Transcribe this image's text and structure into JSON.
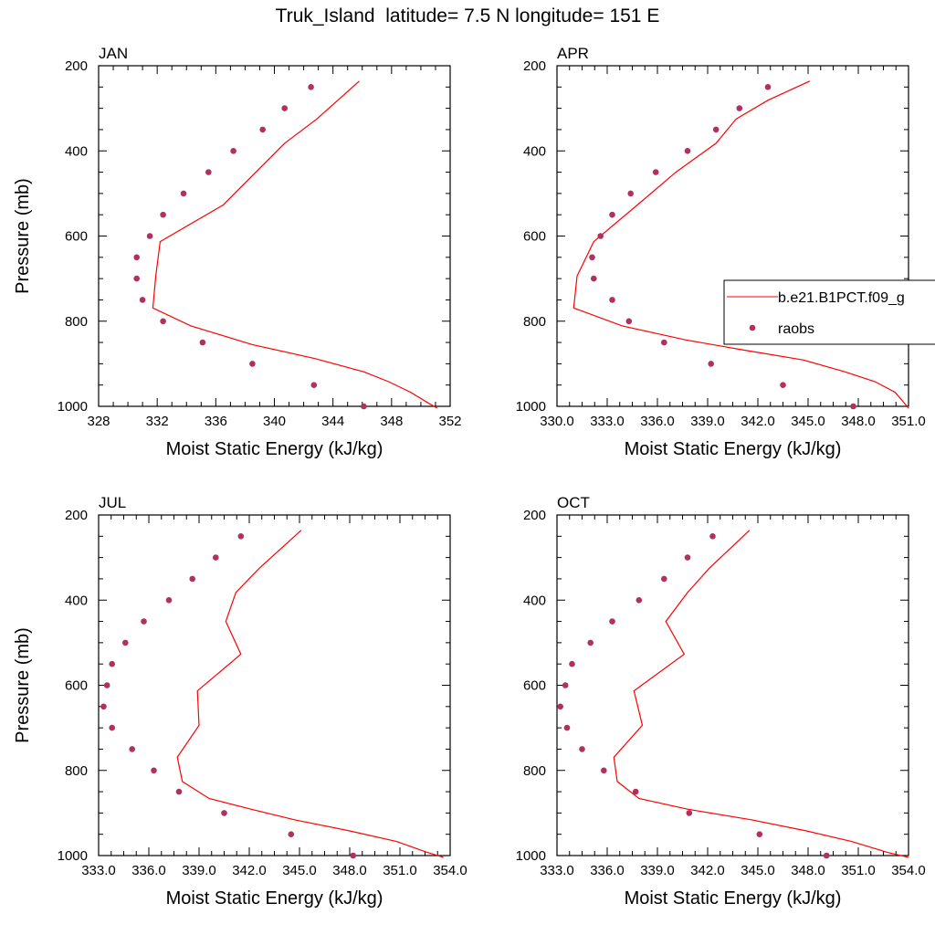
{
  "title": "Truk_Island  latitude= 7.5 N longitude= 151 E",
  "legend": {
    "entries": [
      {
        "label": "b.e21.B1PCT.f09_g",
        "style": "line",
        "color": "#ff0000"
      },
      {
        "label": "raobs",
        "style": "marker",
        "color": "#b03060"
      }
    ]
  },
  "chart_data": [
    {
      "type": "line",
      "title": "JAN",
      "xlabel": "Moist Static Energy (kJ/kg)",
      "ylabel": "Pressure (mb)",
      "xlim": [
        328,
        352
      ],
      "ylim": [
        1000,
        200
      ],
      "xticks": [
        "328",
        "332",
        "336",
        "340",
        "344",
        "348",
        "352"
      ],
      "xtick_values": [
        328,
        332,
        336,
        340,
        344,
        348,
        352
      ],
      "yticks": [
        "200",
        "400",
        "600",
        "800",
        "1000"
      ],
      "ytick_values": [
        200,
        400,
        600,
        800,
        1000
      ],
      "series": [
        {
          "name": "b.e21.B1PCT.f09_g",
          "style": "line",
          "x": [
            345.8,
            342.9,
            340.7,
            336.5,
            332.2,
            331.9,
            331.7,
            334.3,
            338.5,
            342.8,
            346.1,
            347.8,
            349.3,
            350.5,
            351.1
          ],
          "y": [
            236,
            325,
            382,
            527,
            613,
            694,
            769,
            811,
            855,
            888,
            919,
            942,
            967,
            992,
            1004
          ]
        },
        {
          "name": "raobs",
          "style": "marker",
          "x": [
            342.5,
            340.7,
            339.2,
            337.2,
            335.5,
            333.8,
            332.4,
            331.5,
            330.6,
            330.6,
            331.0,
            332.4,
            335.1,
            338.5,
            342.7,
            346.1
          ],
          "y": [
            250,
            300,
            350,
            400,
            450,
            500,
            550,
            600,
            650,
            700,
            750,
            800,
            850,
            900,
            950,
            1000
          ]
        }
      ]
    },
    {
      "type": "line",
      "title": "APR",
      "xlabel": "Moist Static Energy (kJ/kg)",
      "ylabel": "",
      "xlim": [
        330,
        351
      ],
      "ylim": [
        1000,
        200
      ],
      "xticks": [
        "330.0",
        "333.0",
        "336.0",
        "339.0",
        "342.0",
        "345.0",
        "348.0",
        "351.0"
      ],
      "xtick_values": [
        330,
        333,
        336,
        339,
        342,
        345,
        348,
        351
      ],
      "yticks": [
        "200",
        "400",
        "600",
        "800",
        "1000"
      ],
      "ytick_values": [
        200,
        400,
        600,
        800,
        1000
      ],
      "series": [
        {
          "name": "b.e21.B1PCT.f09_g",
          "style": "line",
          "x": [
            345.1,
            342.6,
            340.7,
            339.5,
            337.1,
            334.8,
            332.2,
            331.2,
            331.0,
            333.9,
            337.7,
            341.2,
            344.7,
            347.2,
            349.0,
            350.2,
            351.0
          ],
          "y": [
            236,
            281,
            325,
            382,
            450,
            527,
            613,
            694,
            769,
            811,
            844,
            868,
            891,
            919,
            942,
            967,
            1004
          ]
        },
        {
          "name": "raobs",
          "style": "marker",
          "x": [
            342.6,
            340.9,
            339.5,
            337.8,
            335.9,
            334.4,
            333.3,
            332.6,
            332.1,
            332.2,
            333.3,
            334.3,
            336.4,
            339.2,
            343.5,
            347.7
          ],
          "y": [
            250,
            300,
            350,
            400,
            450,
            500,
            550,
            600,
            650,
            700,
            750,
            800,
            850,
            900,
            950,
            1000
          ]
        }
      ]
    },
    {
      "type": "line",
      "title": "JUL",
      "xlabel": "Moist Static Energy (kJ/kg)",
      "ylabel": "Pressure (mb)",
      "xlim": [
        333,
        354
      ],
      "ylim": [
        1000,
        200
      ],
      "xticks": [
        "333.0",
        "336.0",
        "339.0",
        "342.0",
        "345.0",
        "348.0",
        "351.0",
        "354.0"
      ],
      "xtick_values": [
        333,
        336,
        339,
        342,
        345,
        348,
        351,
        354
      ],
      "yticks": [
        "200",
        "400",
        "600",
        "800",
        "1000"
      ],
      "ytick_values": [
        200,
        400,
        600,
        800,
        1000
      ],
      "series": [
        {
          "name": "b.e21.B1PCT.f09_g",
          "style": "line",
          "x": [
            345.1,
            342.6,
            341.2,
            340.6,
            341.5,
            338.9,
            339.0,
            337.7,
            338.0,
            339.6,
            342.1,
            344.7,
            348.0,
            350.8,
            352.6,
            353.6
          ],
          "y": [
            236,
            325,
            382,
            450,
            527,
            613,
            694,
            769,
            826,
            866,
            891,
            916,
            942,
            967,
            992,
            1004
          ]
        },
        {
          "name": "raobs",
          "style": "marker",
          "x": [
            341.5,
            340.0,
            338.6,
            337.2,
            335.7,
            334.6,
            333.8,
            333.5,
            333.3,
            333.8,
            335.0,
            336.3,
            337.8,
            340.5,
            344.5,
            348.2
          ],
          "y": [
            250,
            300,
            350,
            400,
            450,
            500,
            550,
            600,
            650,
            700,
            750,
            800,
            850,
            900,
            950,
            1000
          ]
        }
      ]
    },
    {
      "type": "line",
      "title": "OCT",
      "xlabel": "Moist Static Energy (kJ/kg)",
      "ylabel": "",
      "xlim": [
        333,
        354
      ],
      "ylim": [
        1000,
        200
      ],
      "xticks": [
        "333.0",
        "336.0",
        "339.0",
        "342.0",
        "345.0",
        "348.0",
        "351.0",
        "354.0"
      ],
      "xtick_values": [
        333,
        336,
        339,
        342,
        345,
        348,
        351,
        354
      ],
      "yticks": [
        "200",
        "400",
        "600",
        "800",
        "1000"
      ],
      "ytick_values": [
        200,
        400,
        600,
        800,
        1000
      ],
      "series": [
        {
          "name": "b.e21.B1PCT.f09_g",
          "style": "line",
          "x": [
            344.5,
            342.1,
            340.8,
            339.5,
            340.6,
            337.6,
            338.1,
            336.4,
            336.6,
            337.9,
            340.8,
            344.6,
            347.9,
            350.6,
            352.7,
            354.0
          ],
          "y": [
            236,
            325,
            382,
            450,
            527,
            613,
            694,
            769,
            826,
            866,
            891,
            916,
            942,
            967,
            992,
            1004
          ]
        },
        {
          "name": "raobs",
          "style": "marker",
          "x": [
            342.3,
            340.8,
            339.4,
            337.9,
            336.3,
            335.0,
            333.9,
            333.5,
            333.2,
            333.6,
            334.5,
            335.8,
            337.7,
            340.9,
            345.1,
            349.1
          ],
          "y": [
            250,
            300,
            350,
            400,
            450,
            500,
            550,
            600,
            650,
            700,
            750,
            800,
            850,
            900,
            950,
            1000
          ]
        }
      ]
    }
  ]
}
